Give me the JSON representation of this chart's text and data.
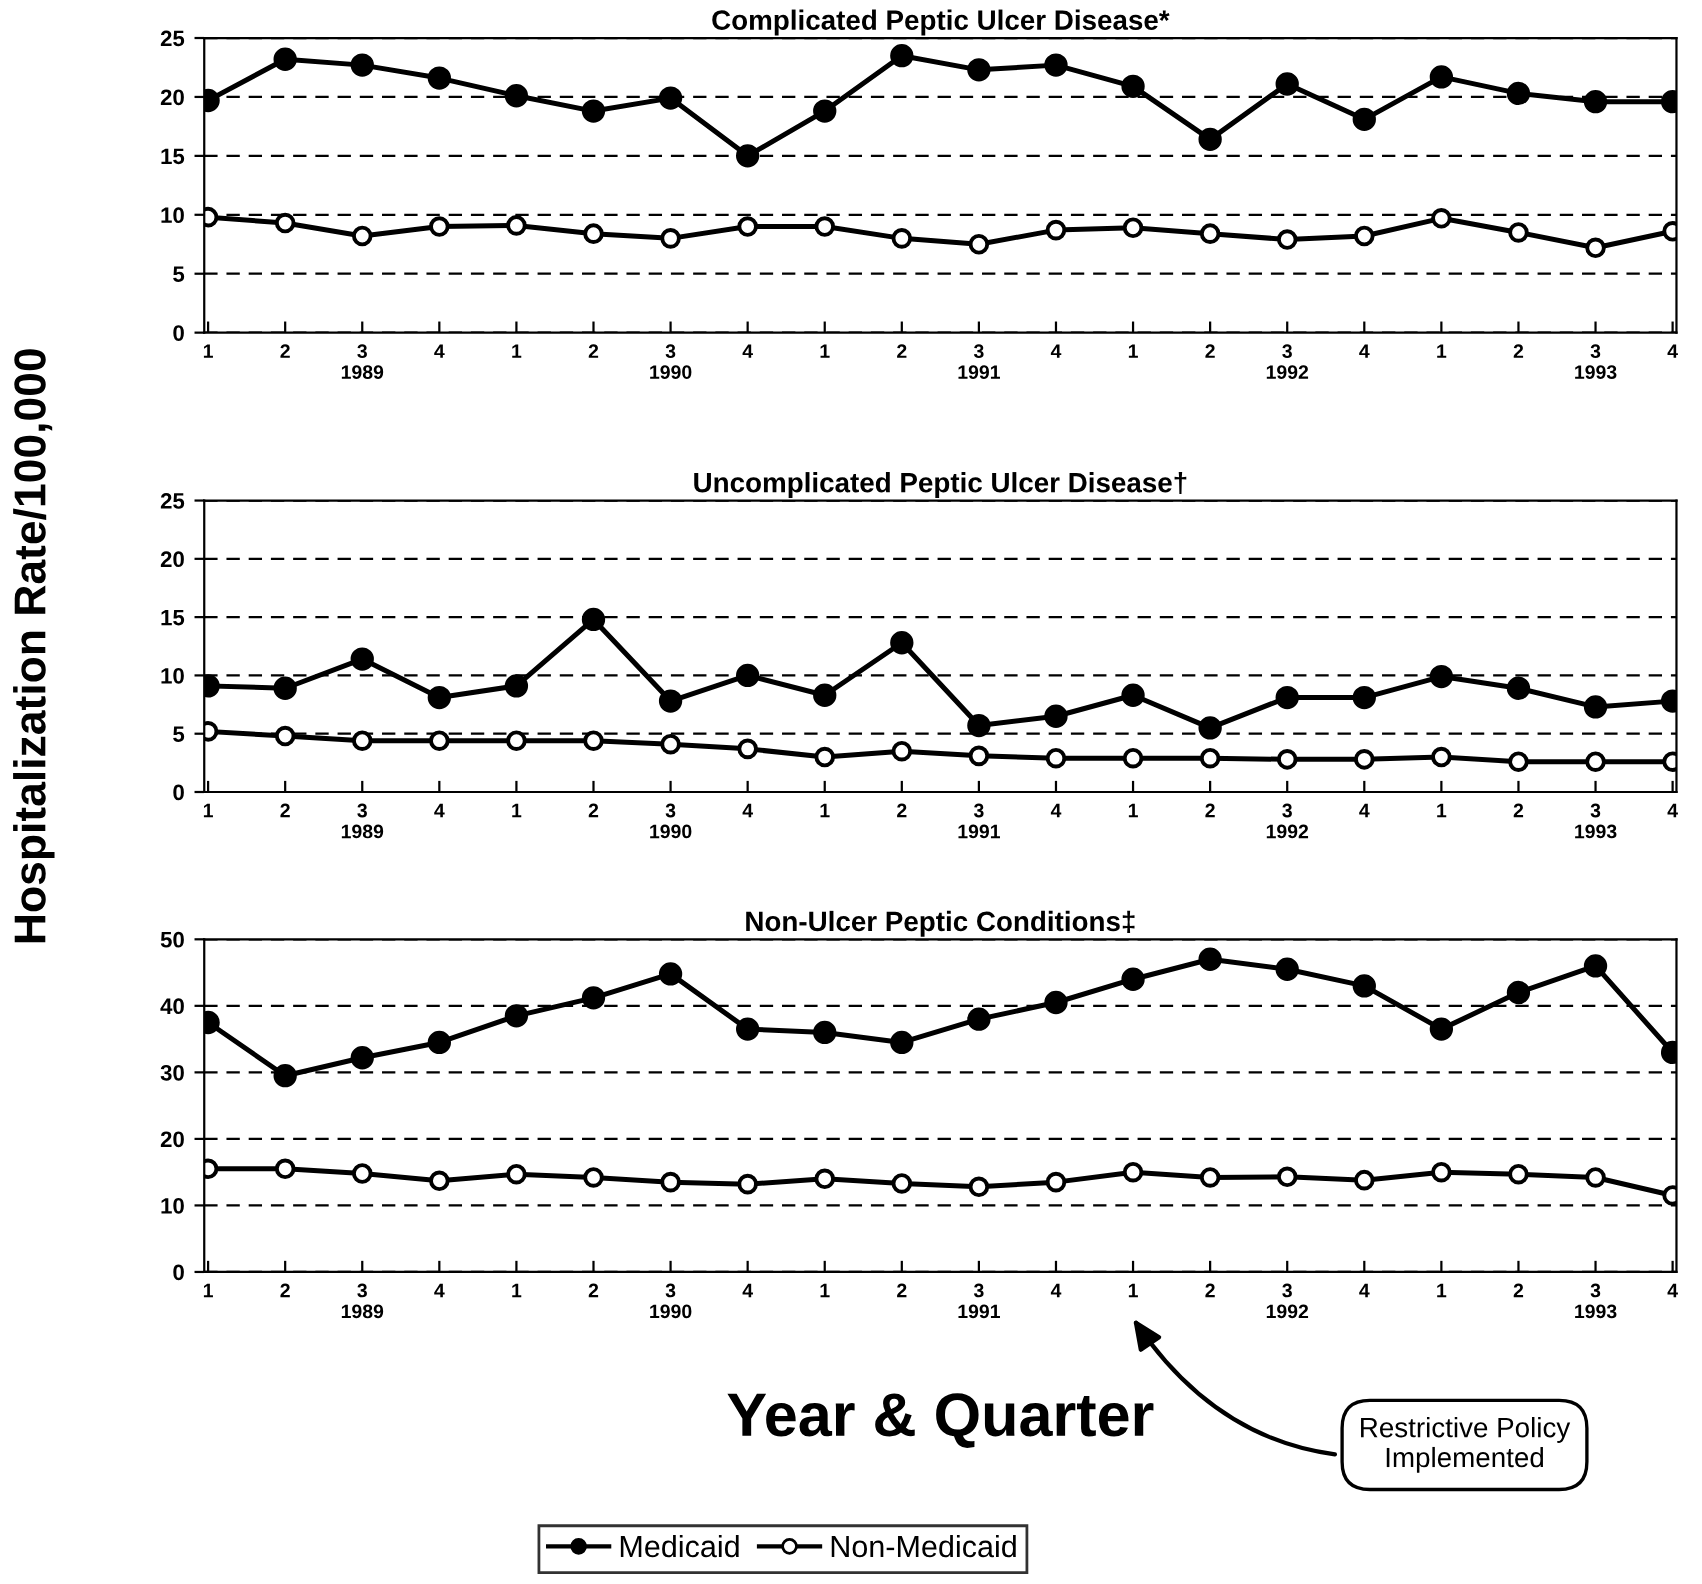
{
  "chart_data": [
    {
      "type": "line",
      "title": "Complicated Peptic Ulcer Disease*",
      "categories": [
        "1",
        "2",
        "3\n1989",
        "4",
        "1",
        "2",
        "3\n1990",
        "4",
        "1",
        "2",
        "3\n1991",
        "4",
        "1",
        "2",
        "3\n1992",
        "4",
        "1",
        "2",
        "3\n1993",
        "4"
      ],
      "series": [
        {
          "name": "Medicaid",
          "color": "#000000",
          "values": [
            19.7,
            23.2,
            22.7,
            21.6,
            20.1,
            18.8,
            19.9,
            15.0,
            18.8,
            23.5,
            22.3,
            22.7,
            20.9,
            16.4,
            21.1,
            18.1,
            21.7,
            20.3,
            19.6,
            19.6
          ]
        },
        {
          "name": "Non-Medicaid",
          "color": "#000000",
          "values": [
            9.8,
            9.3,
            8.2,
            9.0,
            9.1,
            8.4,
            8.0,
            9.0,
            9.0,
            8.0,
            7.5,
            8.7,
            8.9,
            8.4,
            7.9,
            8.2,
            9.7,
            8.5,
            7.2,
            8.6
          ]
        }
      ],
      "ylim": [
        0,
        25
      ],
      "yticks": [
        0,
        5,
        10,
        15,
        20,
        25
      ],
      "grid": "y",
      "marker": "circle",
      "line_style": "solid",
      "legend": "bottom"
    },
    {
      "type": "line",
      "title": "Uncomplicated Peptic Ulcer Disease†",
      "ylabel": "Hospitalization Rate/100,000",
      "categories": [
        "1",
        "2",
        "3\n1989",
        "4",
        "1",
        "2",
        "3\n1990",
        "4",
        "1",
        "2",
        "3\n1991",
        "4",
        "1",
        "2",
        "3\n1992",
        "4",
        "1",
        "2",
        "3\n1993",
        "4"
      ],
      "series": [
        {
          "color": "#000000",
          "values": [
            9.1,
            8.9,
            11.4,
            8.1,
            9.1,
            14.8,
            7.8,
            10.0,
            8.3,
            12.8,
            5.7,
            6.5,
            8.3,
            5.5,
            8.1,
            8.1,
            9.9,
            8.9,
            7.3,
            7.8
          ]
        },
        {
          "color": "#000000",
          "values": [
            5.2,
            4.8,
            4.4,
            4.4,
            4.4,
            4.4,
            4.1,
            3.7,
            3.0,
            3.5,
            3.1,
            2.9,
            2.9,
            2.9,
            2.8,
            2.8,
            3.0,
            2.6,
            2.6,
            2.6
          ]
        }
      ],
      "ylim": [
        0,
        25
      ],
      "yticks": [
        0,
        5,
        10,
        15,
        20,
        25
      ],
      "grid": "y",
      "marker": "circle",
      "line_style": "solid"
    },
    {
      "type": "line",
      "title": "Non-Ulcer Peptic Conditions‡",
      "xlabel": "Year & Quarter",
      "categories": [
        "1",
        "2",
        "3\n1989",
        "4",
        "1",
        "2",
        "3\n1990",
        "4",
        "1",
        "2",
        "3\n1991",
        "4",
        "1",
        "2",
        "3\n1992",
        "4",
        "1",
        "2",
        "3\n1993",
        "4"
      ],
      "series": [
        {
          "color": "#000000",
          "values": [
            37.5,
            29.5,
            32.2,
            34.5,
            38.5,
            41.2,
            44.8,
            36.5,
            36.0,
            34.5,
            38.0,
            40.5,
            44.0,
            47.0,
            45.5,
            43.0,
            36.5,
            42.0,
            46.0,
            33.0
          ]
        },
        {
          "color": "#000000",
          "values": [
            15.5,
            15.5,
            14.8,
            13.7,
            14.7,
            14.2,
            13.5,
            13.2,
            14.0,
            13.3,
            12.8,
            13.5,
            15.0,
            14.2,
            14.3,
            13.8,
            15.0,
            14.7,
            14.2,
            11.5
          ]
        }
      ],
      "ylim": [
        0,
        50
      ],
      "yticks": [
        0,
        10,
        20,
        30,
        40,
        50
      ],
      "grid": "y",
      "marker": "circle",
      "line_style": "solid",
      "annotations": [
        "Restrictive Policy Implemented"
      ]
    }
  ]
}
